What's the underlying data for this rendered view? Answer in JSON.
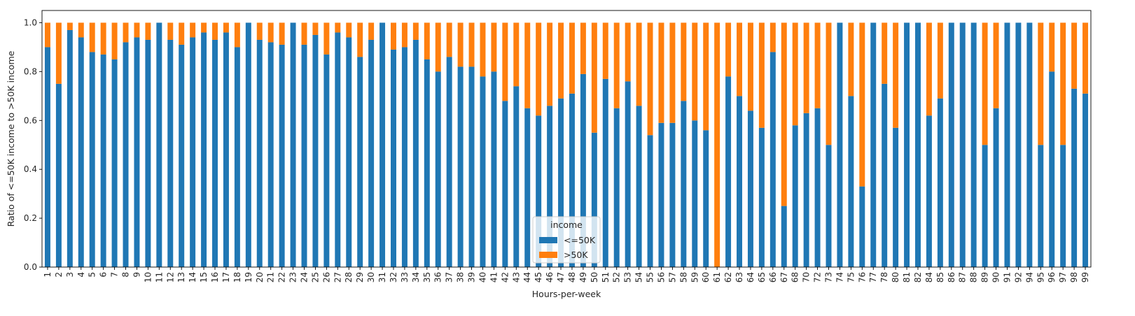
{
  "chart_data": {
    "type": "bar",
    "stacked": true,
    "title": "",
    "xlabel": "Hours-per-week",
    "ylabel": "Ratio of <=50K income to >50K income",
    "ylim": [
      0,
      1.05
    ],
    "yticks": [
      "0.0",
      "0.2",
      "0.4",
      "0.6",
      "0.8",
      "1.0"
    ],
    "categories": [
      "1",
      "2",
      "3",
      "4",
      "5",
      "6",
      "7",
      "8",
      "9",
      "10",
      "11",
      "12",
      "13",
      "14",
      "15",
      "16",
      "17",
      "18",
      "19",
      "20",
      "21",
      "22",
      "23",
      "24",
      "25",
      "26",
      "27",
      "28",
      "29",
      "30",
      "31",
      "32",
      "33",
      "34",
      "35",
      "36",
      "37",
      "38",
      "39",
      "40",
      "41",
      "42",
      "43",
      "44",
      "45",
      "46",
      "47",
      "48",
      "49",
      "50",
      "51",
      "52",
      "53",
      "54",
      "55",
      "56",
      "57",
      "58",
      "59",
      "60",
      "61",
      "62",
      "63",
      "64",
      "65",
      "66",
      "67",
      "68",
      "70",
      "72",
      "73",
      "74",
      "75",
      "76",
      "77",
      "78",
      "80",
      "81",
      "82",
      "84",
      "85",
      "86",
      "87",
      "88",
      "89",
      "90",
      "91",
      "92",
      "94",
      "95",
      "96",
      "97",
      "98",
      "99"
    ],
    "legend": {
      "title": "income",
      "position": "lower-center"
    },
    "series": [
      {
        "name": "<=50K",
        "color": "#1f77b4",
        "values": [
          0.9,
          0.75,
          0.97,
          0.94,
          0.88,
          0.87,
          0.85,
          0.92,
          0.94,
          0.93,
          1.0,
          0.93,
          0.91,
          0.94,
          0.96,
          0.93,
          0.96,
          0.9,
          1.0,
          0.93,
          0.92,
          0.91,
          1.0,
          0.91,
          0.95,
          0.87,
          0.96,
          0.94,
          0.86,
          0.93,
          1.0,
          0.89,
          0.9,
          0.93,
          0.85,
          0.8,
          0.86,
          0.82,
          0.82,
          0.78,
          0.8,
          0.68,
          0.74,
          0.65,
          0.62,
          0.66,
          0.69,
          0.71,
          0.79,
          0.55,
          0.77,
          0.65,
          0.76,
          0.66,
          0.54,
          0.59,
          0.59,
          0.68,
          0.6,
          0.56,
          0.0,
          0.78,
          0.7,
          0.64,
          0.57,
          0.88,
          0.25,
          0.58,
          0.63,
          0.65,
          0.5,
          1.0,
          0.7,
          0.33,
          1.0,
          0.75,
          0.57,
          1.0,
          1.0,
          0.62,
          0.69,
          1.0,
          1.0,
          1.0,
          0.5,
          0.65,
          1.0,
          1.0,
          1.0,
          0.5,
          0.8,
          0.5,
          0.73,
          0.71
        ]
      },
      {
        "name": ">50K",
        "color": "#ff7f0e",
        "values": [
          0.1,
          0.25,
          0.03,
          0.06,
          0.12,
          0.13,
          0.15,
          0.08,
          0.06,
          0.07,
          0.0,
          0.07,
          0.09,
          0.06,
          0.04,
          0.07,
          0.04,
          0.1,
          0.0,
          0.07,
          0.08,
          0.09,
          0.0,
          0.09,
          0.05,
          0.13,
          0.04,
          0.06,
          0.14,
          0.07,
          0.0,
          0.11,
          0.1,
          0.07,
          0.15,
          0.2,
          0.14,
          0.18,
          0.18,
          0.22,
          0.2,
          0.32,
          0.26,
          0.35,
          0.38,
          0.34,
          0.31,
          0.29,
          0.21,
          0.45,
          0.23,
          0.35,
          0.24,
          0.34,
          0.46,
          0.41,
          0.41,
          0.32,
          0.4,
          0.44,
          1.0,
          0.22,
          0.3,
          0.36,
          0.43,
          0.12,
          0.75,
          0.42,
          0.37,
          0.35,
          0.5,
          0.0,
          0.3,
          0.67,
          0.0,
          0.25,
          0.43,
          0.0,
          0.0,
          0.38,
          0.31,
          0.0,
          0.0,
          0.0,
          0.5,
          0.35,
          0.0,
          0.0,
          0.0,
          0.5,
          0.2,
          0.5,
          0.27,
          0.29
        ]
      }
    ]
  }
}
